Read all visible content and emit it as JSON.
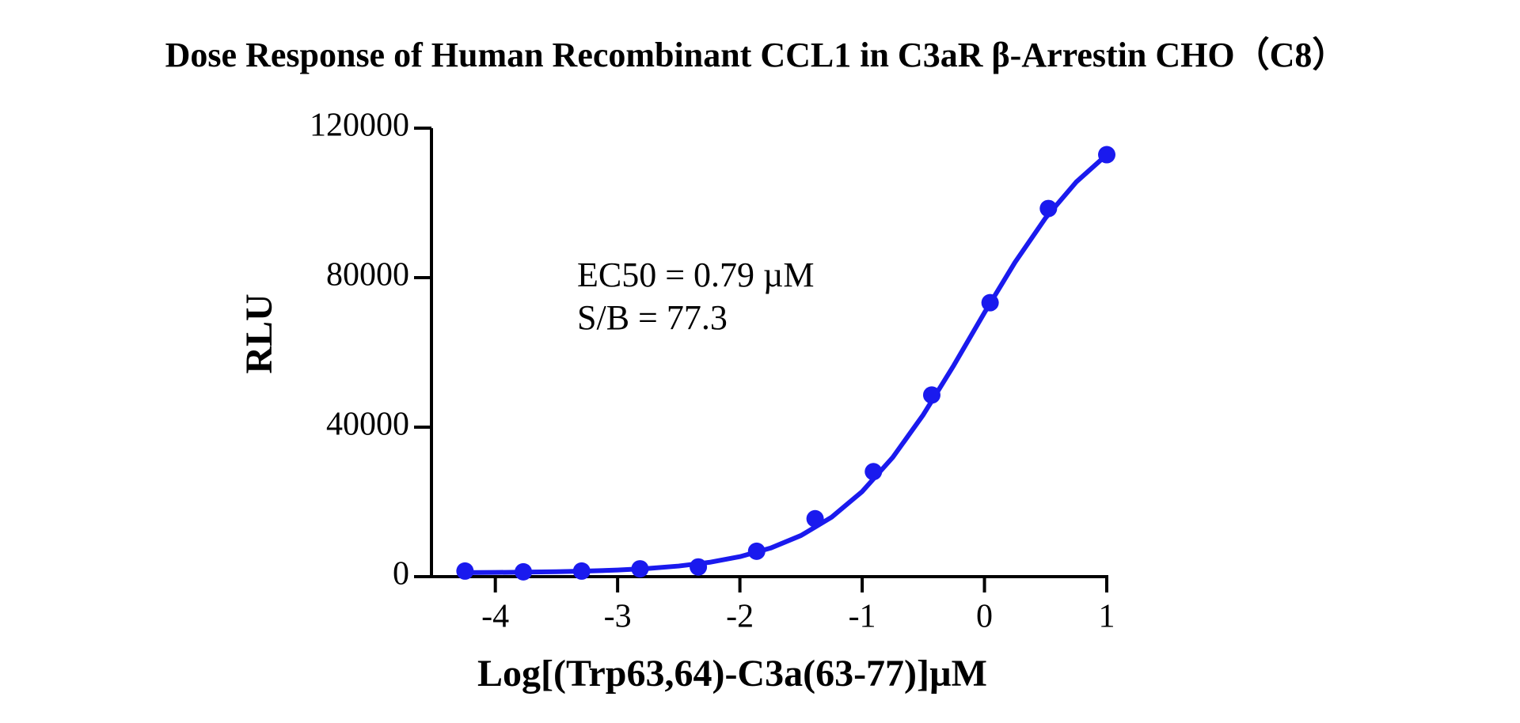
{
  "chart_data": {
    "type": "scatter",
    "title": "Dose Response of Human Recombinant CCL1 in C3aR β-Arrestin CHO（C8）",
    "xlabel": "Log[(Trp63,64)-C3a(63-77)]µM",
    "ylabel": "RLU",
    "annotations": [
      "EC50 = 0.79 µM",
      "S/B = 77.3"
    ],
    "color": "#1a1aee",
    "x": [
      -4.248,
      -3.771,
      -3.294,
      -2.817,
      -2.34,
      -1.863,
      -1.385,
      -0.908,
      -0.431,
      0.046,
      0.523,
      1.0
    ],
    "values": [
      1500,
      1300,
      1500,
      2100,
      2600,
      6800,
      15500,
      28100,
      48600,
      73300,
      98500,
      112900
    ],
    "fit_x": [
      -4.25,
      -4.0,
      -3.75,
      -3.5,
      -3.25,
      -3.0,
      -2.75,
      -2.5,
      -2.25,
      -2.0,
      -1.75,
      -1.5,
      -1.25,
      -1.0,
      -0.75,
      -0.5,
      -0.25,
      0,
      0.25,
      0.5,
      0.75,
      1.0
    ],
    "fit_values": [
      1086,
      1133,
      1206,
      1320,
      1496,
      1768,
      2192,
      2842,
      3832,
      5354,
      7636,
      11016,
      15918,
      22769,
      31918,
      43342,
      56580,
      70640,
      84117,
      95990,
      105580,
      112890
    ],
    "xlim": [
      -4.6,
      1.0
    ],
    "ylim": [
      0,
      120000
    ],
    "xticks": [
      -4,
      -3,
      -2,
      -1,
      0,
      1
    ],
    "yticks": [
      0,
      40000,
      80000,
      120000
    ],
    "grid": false
  }
}
